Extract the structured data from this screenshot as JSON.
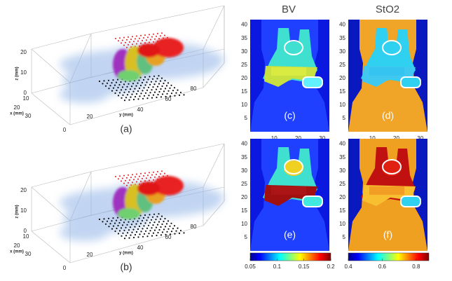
{
  "columns": [
    "BV",
    "StO2"
  ],
  "panels_3d": [
    {
      "label": "(a)"
    },
    {
      "label": "(b)"
    }
  ],
  "axis_3d": {
    "z_label": "z (mm)",
    "x_label": "x (mm)",
    "y_label": "y (mm)",
    "z_ticks": [
      0,
      10,
      20
    ],
    "x_ticks": [
      0,
      10,
      20,
      30
    ],
    "y_ticks": [
      20,
      40,
      60,
      80
    ]
  },
  "maps": [
    {
      "label": "(c)"
    },
    {
      "label": "(d)"
    },
    {
      "label": "(e)"
    },
    {
      "label": "(f)"
    }
  ],
  "map_y_ticks": [
    5,
    10,
    15,
    20,
    25,
    30,
    35,
    40
  ],
  "map_x_ticks": [
    10,
    20,
    30
  ],
  "colorbars": [
    {
      "ticks": [
        0.05,
        0.1,
        0.15,
        0.2
      ]
    },
    {
      "ticks": [
        0.4,
        0.6,
        0.8
      ]
    }
  ]
}
